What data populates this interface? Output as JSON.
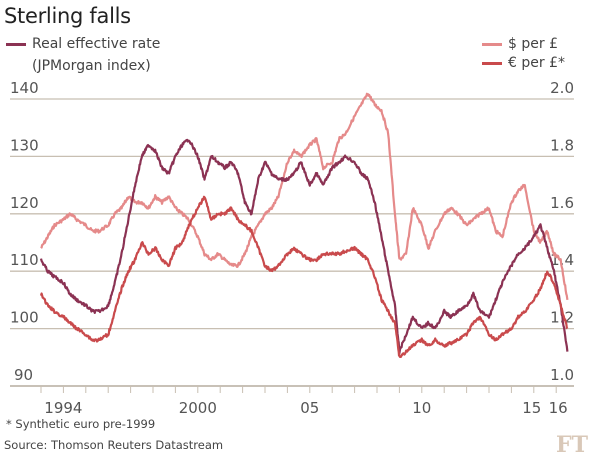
{
  "chart_data": {
    "type": "line",
    "title": "Sterling falls",
    "legend": [
      {
        "name": "Real effective rate",
        "name2": "(JPMorgan index)",
        "color": "#8b3253",
        "axis": "left",
        "placement": "top-left"
      },
      {
        "name": "$ per £",
        "color": "#e58a8a",
        "axis": "right",
        "placement": "top-right"
      },
      {
        "name": "€ per £*",
        "color": "#c94a4c",
        "axis": "right",
        "placement": "top-right"
      }
    ],
    "x_ticks": [
      "1994",
      "2000",
      "05",
      "10",
      "15",
      "16"
    ],
    "x_tick_years": [
      1994,
      2000,
      2005,
      2010,
      2015,
      2016
    ],
    "x_minor_range": [
      1993,
      2016
    ],
    "xlim": [
      1993,
      2016.8
    ],
    "y_left": {
      "ticks": [
        "140",
        "130",
        "120",
        "110",
        "100",
        "90"
      ],
      "values": [
        140,
        130,
        120,
        110,
        100,
        90
      ],
      "ylim": [
        90,
        140
      ]
    },
    "y_right": {
      "ticks": [
        "2.0",
        "1.8",
        "1.6",
        "1.4",
        "1.2",
        "1.0"
      ],
      "values": [
        2.0,
        1.8,
        1.6,
        1.4,
        1.2,
        1.0
      ],
      "ylim": [
        1.0,
        2.0
      ]
    },
    "grid": true,
    "series": [
      {
        "name": "Real effective rate (JPMorgan index)",
        "axis": "left",
        "x": [
          1993.0,
          1993.3,
          1993.6,
          1994.0,
          1994.3,
          1994.6,
          1995.0,
          1995.3,
          1995.6,
          1996.0,
          1996.3,
          1996.6,
          1996.9,
          1997.2,
          1997.5,
          1997.8,
          1998.1,
          1998.4,
          1998.7,
          1999.0,
          1999.3,
          1999.6,
          2000.0,
          2000.3,
          2000.6,
          2000.9,
          2001.2,
          2001.5,
          2001.8,
          2002.1,
          2002.4,
          2002.7,
          2003.0,
          2003.3,
          2003.6,
          2004.0,
          2004.3,
          2004.6,
          2005.0,
          2005.3,
          2005.6,
          2006.0,
          2006.3,
          2006.6,
          2007.0,
          2007.3,
          2007.6,
          2007.9,
          2008.2,
          2008.5,
          2008.8,
          2009.0,
          2009.3,
          2009.6,
          2010.0,
          2010.3,
          2010.6,
          2011.0,
          2011.3,
          2011.6,
          2012.0,
          2012.3,
          2012.6,
          2013.0,
          2013.3,
          2013.6,
          2014.0,
          2014.3,
          2014.6,
          2015.0,
          2015.3,
          2015.6,
          2015.9,
          2016.2,
          2016.5
        ],
        "y": [
          112,
          110,
          109,
          108,
          106,
          105,
          104,
          103,
          103,
          104,
          108,
          113,
          119,
          125,
          130,
          132,
          131,
          128,
          127,
          130,
          132,
          133,
          130,
          126,
          130,
          129,
          128,
          129,
          127,
          122,
          120,
          126,
          129,
          127,
          126,
          126,
          127,
          129,
          125,
          127,
          125,
          128,
          129,
          130,
          129,
          127,
          126,
          122,
          116,
          110,
          104,
          96,
          99,
          102,
          100,
          101,
          100,
          103,
          102,
          103,
          104,
          106,
          103,
          102,
          105,
          108,
          111,
          113,
          114,
          116,
          118,
          114,
          110,
          104,
          96
        ],
        "values_note": "index"
      },
      {
        "name": "$ per £",
        "axis": "right",
        "x": [
          1993.0,
          1993.3,
          1993.6,
          1994.0,
          1994.3,
          1994.6,
          1995.0,
          1995.3,
          1995.6,
          1996.0,
          1996.3,
          1996.6,
          1996.9,
          1997.2,
          1997.5,
          1997.8,
          1998.1,
          1998.4,
          1998.7,
          1999.0,
          1999.3,
          1999.6,
          2000.0,
          2000.3,
          2000.6,
          2000.9,
          2001.2,
          2001.5,
          2001.8,
          2002.1,
          2002.4,
          2002.7,
          2003.0,
          2003.3,
          2003.6,
          2004.0,
          2004.3,
          2004.6,
          2005.0,
          2005.3,
          2005.6,
          2006.0,
          2006.3,
          2006.6,
          2007.0,
          2007.3,
          2007.6,
          2007.9,
          2008.2,
          2008.5,
          2008.8,
          2009.0,
          2009.3,
          2009.6,
          2010.0,
          2010.3,
          2010.6,
          2011.0,
          2011.3,
          2011.6,
          2012.0,
          2012.3,
          2012.6,
          2013.0,
          2013.3,
          2013.6,
          2014.0,
          2014.3,
          2014.6,
          2015.0,
          2015.3,
          2015.6,
          2015.9,
          2016.2,
          2016.5
        ],
        "y": [
          1.48,
          1.52,
          1.56,
          1.58,
          1.6,
          1.58,
          1.56,
          1.54,
          1.54,
          1.56,
          1.6,
          1.62,
          1.66,
          1.64,
          1.64,
          1.62,
          1.66,
          1.64,
          1.66,
          1.62,
          1.6,
          1.58,
          1.52,
          1.46,
          1.44,
          1.46,
          1.44,
          1.42,
          1.42,
          1.46,
          1.52,
          1.56,
          1.6,
          1.62,
          1.66,
          1.78,
          1.82,
          1.8,
          1.84,
          1.86,
          1.76,
          1.78,
          1.86,
          1.88,
          1.94,
          1.98,
          2.02,
          1.98,
          1.96,
          1.88,
          1.6,
          1.44,
          1.46,
          1.62,
          1.56,
          1.48,
          1.54,
          1.6,
          1.62,
          1.6,
          1.56,
          1.58,
          1.6,
          1.62,
          1.54,
          1.52,
          1.64,
          1.68,
          1.7,
          1.54,
          1.5,
          1.54,
          1.46,
          1.44,
          1.3
        ],
        "values_note": "USD per GBP"
      },
      {
        "name": "€ per £*",
        "axis": "right",
        "x": [
          1993.0,
          1993.3,
          1993.6,
          1994.0,
          1994.3,
          1994.6,
          1995.0,
          1995.3,
          1995.6,
          1996.0,
          1996.3,
          1996.6,
          1996.9,
          1997.2,
          1997.5,
          1997.8,
          1998.1,
          1998.4,
          1998.7,
          1999.0,
          1999.3,
          1999.6,
          2000.0,
          2000.3,
          2000.6,
          2000.9,
          2001.2,
          2001.5,
          2001.8,
          2002.1,
          2002.4,
          2002.7,
          2003.0,
          2003.3,
          2003.6,
          2004.0,
          2004.3,
          2004.6,
          2005.0,
          2005.3,
          2005.6,
          2006.0,
          2006.3,
          2006.6,
          2007.0,
          2007.3,
          2007.6,
          2007.9,
          2008.2,
          2008.5,
          2008.8,
          2009.0,
          2009.3,
          2009.6,
          2010.0,
          2010.3,
          2010.6,
          2011.0,
          2011.3,
          2011.6,
          2012.0,
          2012.3,
          2012.6,
          2013.0,
          2013.3,
          2013.6,
          2014.0,
          2014.3,
          2014.6,
          2015.0,
          2015.3,
          2015.6,
          2015.9,
          2016.2,
          2016.5
        ],
        "y": [
          1.32,
          1.28,
          1.26,
          1.24,
          1.22,
          1.2,
          1.18,
          1.16,
          1.16,
          1.18,
          1.26,
          1.34,
          1.4,
          1.44,
          1.5,
          1.46,
          1.48,
          1.44,
          1.42,
          1.48,
          1.5,
          1.56,
          1.62,
          1.66,
          1.58,
          1.6,
          1.6,
          1.62,
          1.58,
          1.56,
          1.54,
          1.48,
          1.42,
          1.4,
          1.42,
          1.46,
          1.48,
          1.46,
          1.44,
          1.44,
          1.46,
          1.46,
          1.46,
          1.47,
          1.48,
          1.46,
          1.44,
          1.38,
          1.3,
          1.26,
          1.22,
          1.1,
          1.12,
          1.14,
          1.16,
          1.14,
          1.16,
          1.14,
          1.15,
          1.16,
          1.18,
          1.22,
          1.24,
          1.18,
          1.16,
          1.18,
          1.2,
          1.24,
          1.26,
          1.3,
          1.34,
          1.4,
          1.36,
          1.28,
          1.2
        ],
        "values_note": "EUR per GBP"
      }
    ],
    "footnote": "* Synthetic euro pre-1999",
    "source": "Source: Thomson Reuters Datastream",
    "logo": "FT"
  }
}
